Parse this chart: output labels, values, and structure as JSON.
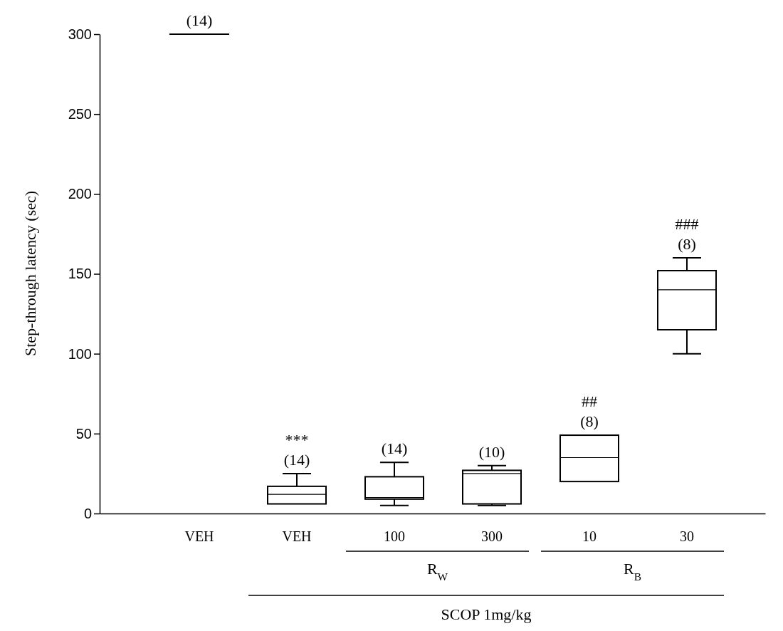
{
  "chart_data": {
    "type": "box",
    "ylabel": "Step-through latency (sec)",
    "categories": [
      "VEH",
      "VEH",
      "100",
      "300",
      "10",
      "30"
    ],
    "boxes": [
      {
        "low": 300,
        "q1": 300,
        "median": 300,
        "q3": 300,
        "high": 300
      },
      {
        "low": 6,
        "q1": 6,
        "median": 12,
        "q3": 17,
        "high": 25
      },
      {
        "low": 5,
        "q1": 9,
        "median": 10,
        "q3": 23,
        "high": 32
      },
      {
        "low": 5,
        "q1": 6,
        "median": 25,
        "q3": 27,
        "high": 30
      },
      {
        "low": 20,
        "q1": 20,
        "median": 35,
        "q3": 49,
        "high": 49
      },
      {
        "low": 100,
        "q1": 115,
        "median": 140,
        "q3": 152,
        "high": 160
      }
    ],
    "ylim": [
      0,
      300
    ],
    "yticks": [
      0,
      50,
      100,
      150,
      200,
      250,
      300
    ],
    "annotations": [
      "(14)",
      "***",
      "(14)",
      "(14)",
      "(10)",
      "##",
      "(8)",
      "###",
      "(8)",
      "R$_{W}$",
      "R$_{B}$",
      "SCOP 1mg/kg"
    ]
  }
}
